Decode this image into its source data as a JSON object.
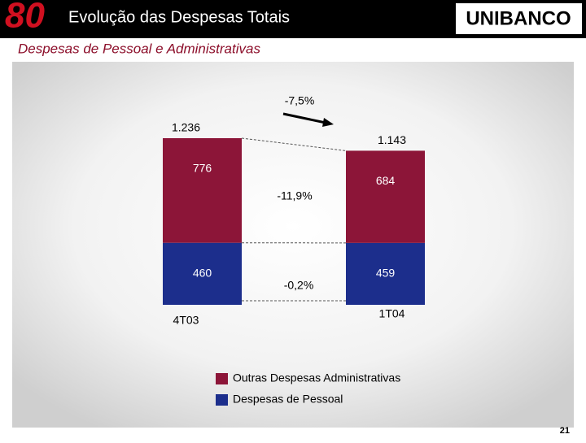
{
  "header": {
    "badge": "80",
    "title": "Evolução das Despesas Totais",
    "logo": "UNIBANCO",
    "page_number": "21"
  },
  "chart_data": {
    "type": "stacked_bar",
    "title": "Despesas de Pessoal e Administrativas",
    "categories": [
      "4T03",
      "1T04"
    ],
    "series": [
      {
        "name": "Despesas de Pessoal",
        "color": "#1c2e8c",
        "values": [
          460,
          459
        ]
      },
      {
        "name": "Outras Despesas Administrativas",
        "color": "#8c1538",
        "values": [
          776,
          684
        ]
      }
    ],
    "totals": {
      "values": [
        1236,
        1143
      ],
      "value_labels": [
        "1.236",
        "1.143"
      ]
    },
    "annotations": [
      "-7,5%",
      "-11,9%",
      "-0,2%"
    ]
  }
}
